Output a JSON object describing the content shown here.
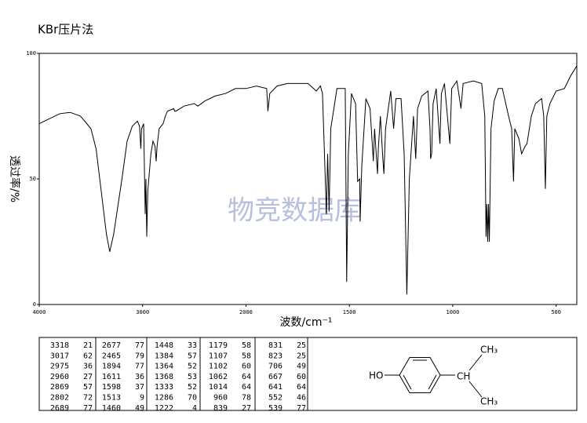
{
  "chart_data": {
    "type": "line",
    "title": "KBr压片法",
    "xlabel": "波数/cm⁻¹",
    "ylabel": "透过率/%",
    "watermark": "物竞数据库",
    "xscale": "piecewise",
    "xbreak": 2000,
    "xlim": [
      4000,
      400
    ],
    "xticks": [
      4000,
      3000,
      2000,
      1500,
      1000,
      500
    ],
    "ylim": [
      0,
      100
    ],
    "yticks": [
      0,
      50,
      100
    ],
    "color": "#000000",
    "x": [
      4000,
      3900,
      3800,
      3700,
      3600,
      3500,
      3450,
      3400,
      3350,
      3318,
      3280,
      3200,
      3150,
      3100,
      3050,
      3030,
      3017,
      3010,
      2990,
      2975,
      2968,
      2960,
      2950,
      2920,
      2900,
      2880,
      2869,
      2860,
      2840,
      2802,
      2780,
      2760,
      2700,
      2689,
      2677,
      2600,
      2500,
      2465,
      2400,
      2300,
      2200,
      2100,
      2000,
      1950,
      1900,
      1894,
      1885,
      1850,
      1800,
      1700,
      1660,
      1640,
      1630,
      1611,
      1605,
      1598,
      1590,
      1560,
      1520,
      1513,
      1505,
      1490,
      1470,
      1460,
      1450,
      1448,
      1440,
      1420,
      1400,
      1384,
      1378,
      1364,
      1360,
      1350,
      1338,
      1333,
      1325,
      1300,
      1286,
      1275,
      1250,
      1235,
      1222,
      1210,
      1190,
      1179,
      1170,
      1150,
      1120,
      1110,
      1107,
      1102,
      1095,
      1080,
      1062,
      1055,
      1040,
      1014,
      1005,
      980,
      960,
      950,
      900,
      860,
      845,
      839,
      835,
      831,
      827,
      823,
      815,
      800,
      780,
      760,
      730,
      715,
      706,
      700,
      680,
      667,
      650,
      641,
      620,
      600,
      570,
      560,
      552,
      545,
      539,
      530,
      500,
      460,
      430,
      400
    ],
    "values": [
      72,
      74,
      76,
      76.5,
      75,
      70,
      62,
      45,
      28,
      21,
      28,
      50,
      65,
      71,
      73,
      71,
      62,
      70,
      72,
      36,
      50,
      27,
      45,
      60,
      65,
      63,
      57,
      63,
      70,
      72,
      75,
      77,
      78,
      77,
      77,
      79,
      80,
      79,
      81,
      83,
      84,
      86,
      86,
      87,
      86,
      77,
      84,
      87,
      88,
      88,
      85,
      87,
      84,
      36,
      60,
      37,
      70,
      86,
      86,
      9,
      60,
      84,
      80,
      49,
      50,
      33,
      55,
      82,
      78,
      57,
      70,
      52,
      62,
      75,
      58,
      52,
      70,
      85,
      70,
      82,
      82,
      60,
      4,
      50,
      75,
      58,
      78,
      83,
      85,
      70,
      58,
      60,
      80,
      86,
      64,
      84,
      88,
      64,
      86,
      89,
      78,
      88,
      89,
      88,
      75,
      27,
      40,
      25,
      40,
      25,
      70,
      81,
      86,
      86,
      75,
      70,
      49,
      70,
      66,
      60,
      63,
      64,
      75,
      80,
      82,
      75,
      46,
      75,
      77,
      80,
      85,
      86,
      91,
      95
    ]
  },
  "peak_table": {
    "rows": [
      [
        3318,
        21
      ],
      [
        3017,
        62
      ],
      [
        2975,
        36
      ],
      [
        2960,
        27
      ],
      [
        2869,
        57
      ],
      [
        2802,
        72
      ],
      [
        2689,
        77
      ],
      [
        2677,
        77
      ],
      [
        2465,
        79
      ],
      [
        1894,
        77
      ],
      [
        1611,
        36
      ],
      [
        1598,
        37
      ],
      [
        1513,
        9
      ],
      [
        1460,
        49
      ],
      [
        1448,
        33
      ],
      [
        1384,
        57
      ],
      [
        1364,
        52
      ],
      [
        1368,
        53
      ],
      [
        1333,
        52
      ],
      [
        1286,
        70
      ],
      [
        1222,
        4
      ],
      [
        1179,
        58
      ],
      [
        1107,
        58
      ],
      [
        1102,
        60
      ],
      [
        1062,
        64
      ],
      [
        1014,
        64
      ],
      [
        960,
        78
      ],
      [
        839,
        27
      ],
      [
        831,
        25
      ],
      [
        823,
        25
      ],
      [
        706,
        49
      ],
      [
        667,
        60
      ],
      [
        641,
        64
      ],
      [
        552,
        46
      ],
      [
        539,
        77
      ]
    ]
  },
  "structure": {
    "labels": [
      "HO",
      "CH",
      "CH₃",
      "CH₃"
    ]
  }
}
